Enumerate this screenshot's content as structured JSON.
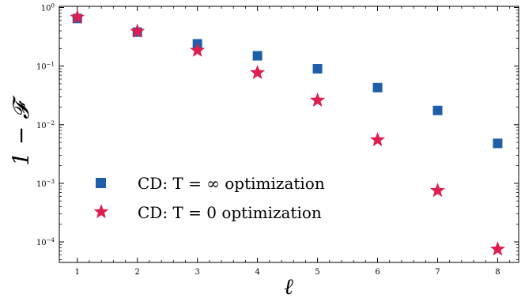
{
  "chart_data": {
    "type": "scatter",
    "xlabel": "ℓ",
    "ylabel": "1 − 𝓕",
    "yscale": "log",
    "xlim": [
      0.7,
      8.35
    ],
    "ylim_log10": [
      -4.35,
      0.02
    ],
    "xticks": [
      1,
      2,
      3,
      4,
      5,
      6,
      7,
      8
    ],
    "yticks": [
      {
        "exp": 0,
        "label": "10",
        "sup": "0"
      },
      {
        "exp": -1,
        "label": "10",
        "sup": "−1"
      },
      {
        "exp": -2,
        "label": "10",
        "sup": "−2"
      },
      {
        "exp": -3,
        "label": "10",
        "sup": "−3"
      },
      {
        "exp": -4,
        "label": "10",
        "sup": "−4"
      }
    ],
    "grid": false,
    "legend_placement": "lower-left",
    "series": [
      {
        "name": "CD: T = ∞ optimization",
        "marker": "square",
        "color": "#1f5fa8",
        "x": [
          1,
          2,
          3,
          4,
          5,
          6,
          7,
          8
        ],
        "y": [
          0.65,
          0.38,
          0.24,
          0.15,
          0.09,
          0.043,
          0.0175,
          0.0048
        ]
      },
      {
        "name": "CD: T = 0 optimization",
        "marker": "star",
        "color": "#dc1e50",
        "x": [
          1,
          2,
          3,
          4,
          5,
          6,
          7,
          8
        ],
        "y": [
          0.68,
          0.39,
          0.185,
          0.077,
          0.026,
          0.0055,
          0.00075,
          7.5e-05
        ]
      }
    ]
  }
}
